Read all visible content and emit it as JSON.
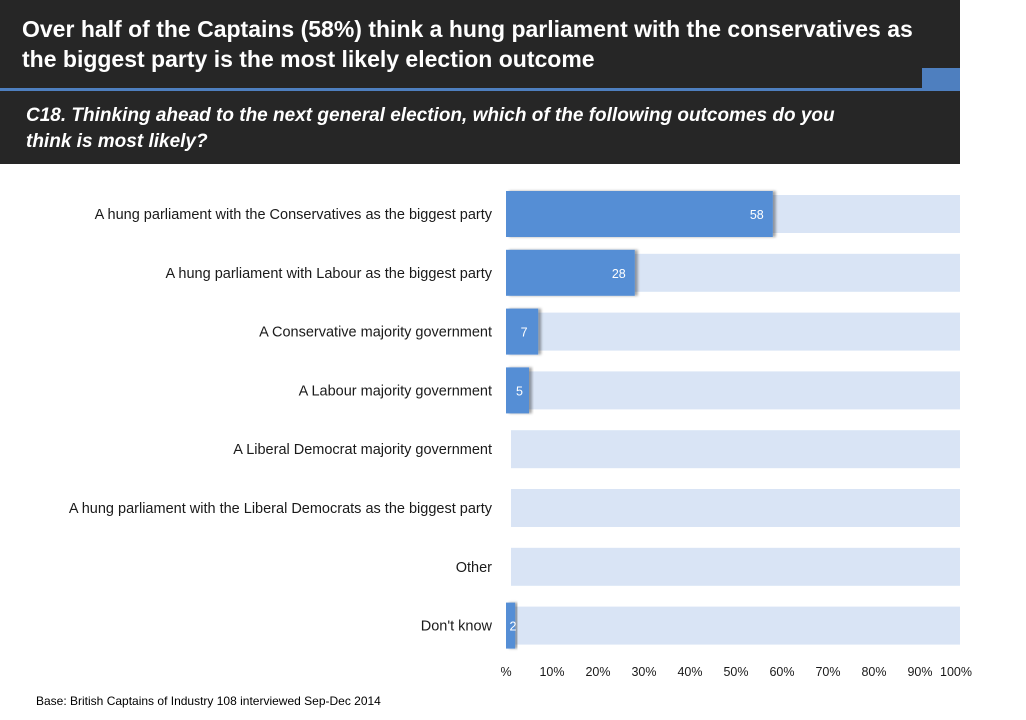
{
  "header": {
    "title": "Over half of the Captains (58%) think a hung parliament with the conservatives as the biggest party is the most likely election outcome",
    "question": "C18. Thinking ahead to the next general election, which of the following outcomes do you\nthink is most likely?"
  },
  "colors": {
    "header_bg": "#262626",
    "accent": "#4e7fbf",
    "bar": "#558ed5",
    "track": "#d9e4f5"
  },
  "chart_data": {
    "type": "bar",
    "orientation": "horizontal",
    "categories": [
      "A hung parliament with the Conservatives as the biggest party",
      "A hung parliament with Labour as the biggest party",
      "A Conservative majority government",
      "A Labour majority government",
      "A Liberal Democrat majority government",
      "A hung parliament with the Liberal Democrats as the biggest party",
      "Other",
      "Don't know"
    ],
    "values": [
      58,
      28,
      7,
      5,
      0,
      0,
      0,
      2
    ],
    "data_labels": [
      "58",
      "28",
      "7",
      "5",
      "",
      "",
      "",
      "2"
    ],
    "xlim": [
      0,
      100
    ],
    "xticks": [
      0,
      10,
      20,
      30,
      40,
      50,
      60,
      70,
      80,
      90,
      100
    ],
    "xtick_labels": [
      "%",
      "10%",
      "20%",
      "30%",
      "40%",
      "50%",
      "60%",
      "70%",
      "80%",
      "90%",
      "100%"
    ],
    "grid": false,
    "legend": "none"
  },
  "footer": {
    "base": "Base: British Captains of Industry 108 interviewed Sep-Dec 2014"
  }
}
